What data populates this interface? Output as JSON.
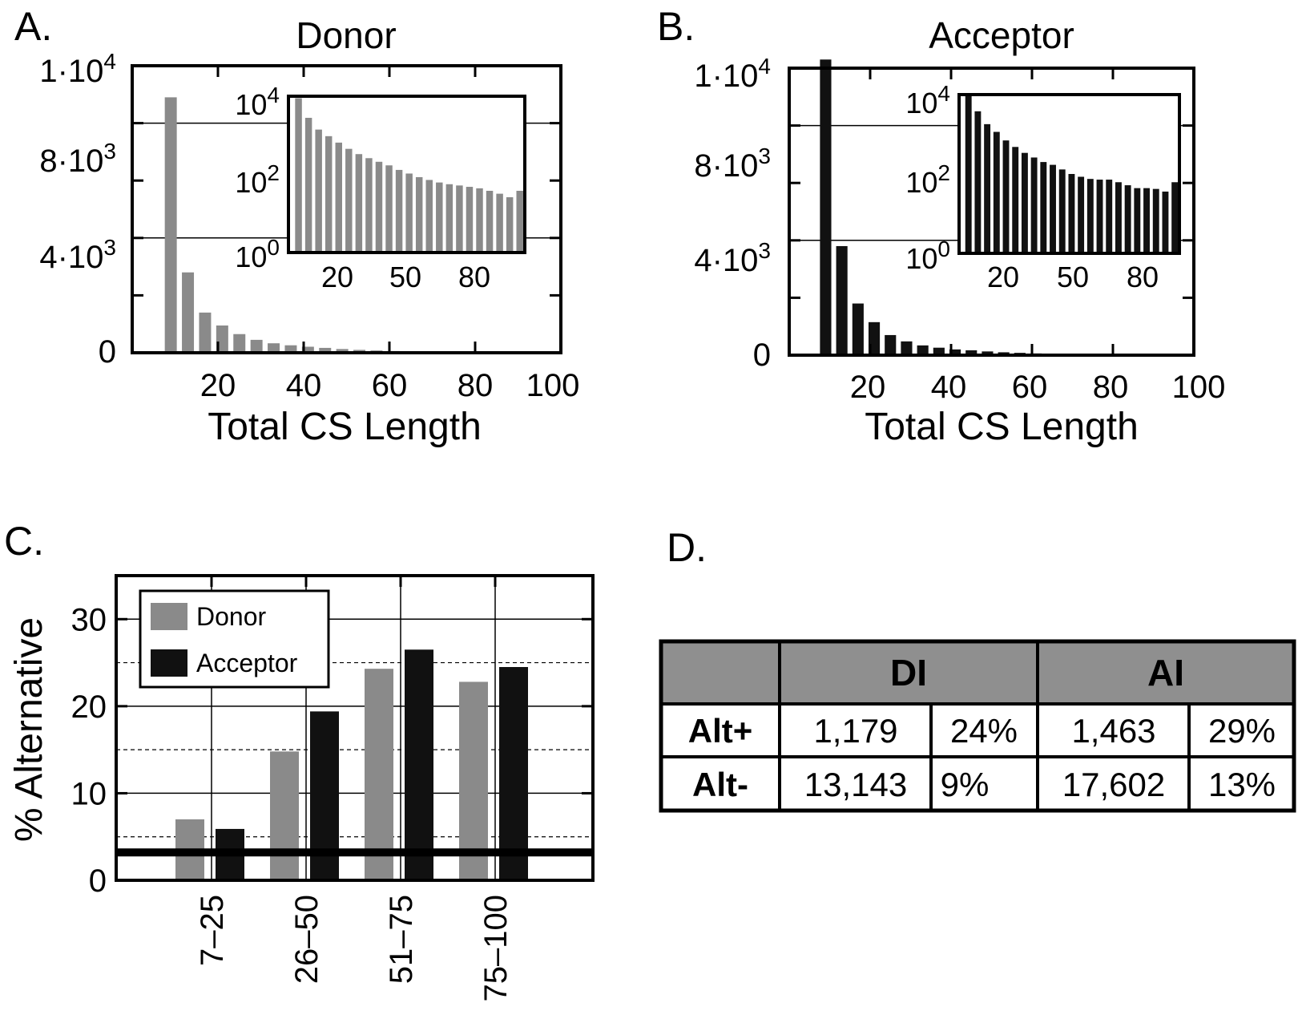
{
  "chart_data": [
    {
      "panel": "A.",
      "type": "bar",
      "title": "Donor",
      "xlabel": "Total CS Length",
      "ylabel": "",
      "xlim": [
        0,
        100
      ],
      "ylim": [
        0,
        10000
      ],
      "xticks": [
        "20",
        "40",
        "60",
        "80",
        "100"
      ],
      "yticks": [
        {
          "value": 0,
          "base": "0",
          "exp": ""
        },
        {
          "value": 4000,
          "base": "4·10",
          "exp": "3"
        },
        {
          "value": 8000,
          "base": "8·10",
          "exp": "3"
        },
        {
          "value": 10000,
          "base": "1·10",
          "exp": "4"
        }
      ],
      "bar_color": "#8a8a8a",
      "x": [
        9,
        13,
        17,
        21,
        25,
        29,
        33,
        37,
        41,
        45,
        49,
        53,
        57,
        61,
        65,
        69,
        73,
        77,
        81,
        85,
        89,
        93,
        97
      ],
      "values": [
        8900,
        2800,
        1400,
        950,
        650,
        450,
        330,
        260,
        210,
        170,
        130,
        100,
        80,
        60,
        45,
        35,
        25,
        20,
        15,
        12,
        10,
        8,
        6
      ],
      "inset": {
        "type": "bar",
        "scale": "log",
        "ylim": [
          1,
          10000
        ],
        "xlim": [
          6,
          100
        ],
        "yticks": [
          {
            "value": 1,
            "base": "10",
            "exp": "0"
          },
          {
            "value": 100,
            "base": "10",
            "exp": "2"
          },
          {
            "value": 10000,
            "base": "10",
            "exp": "4"
          }
        ],
        "xticks": [
          "20",
          "50",
          "80"
        ],
        "x": [
          10,
          14,
          18,
          22,
          26,
          30,
          34,
          38,
          42,
          46,
          50,
          54,
          58,
          62,
          66,
          70,
          74,
          78,
          82,
          86,
          90,
          94,
          98
        ],
        "values": [
          8900,
          2800,
          1400,
          950,
          650,
          450,
          330,
          260,
          210,
          170,
          130,
          105,
          85,
          72,
          62,
          56,
          52,
          48,
          44,
          38,
          32,
          26,
          38
        ]
      }
    },
    {
      "panel": "B.",
      "type": "bar",
      "title": "Acceptor",
      "xlabel": "Total CS Length",
      "ylabel": "",
      "xlim": [
        0,
        100
      ],
      "ylim": [
        0,
        10000
      ],
      "xticks": [
        "20",
        "40",
        "60",
        "80",
        "100"
      ],
      "yticks": [
        {
          "value": 0,
          "base": "0",
          "exp": ""
        },
        {
          "value": 4000,
          "base": "4·10",
          "exp": "3"
        },
        {
          "value": 8000,
          "base": "8·10",
          "exp": "3"
        },
        {
          "value": 10000,
          "base": "1·10",
          "exp": "4"
        }
      ],
      "bar_color": "#111111",
      "x": [
        9,
        13,
        17,
        21,
        25,
        29,
        33,
        37,
        41,
        45,
        49,
        53,
        57,
        61,
        65,
        69,
        73,
        77,
        81,
        85,
        89,
        93,
        97
      ],
      "values": [
        10300,
        3800,
        1800,
        1150,
        700,
        480,
        340,
        260,
        200,
        170,
        130,
        100,
        80,
        60,
        50,
        40,
        30,
        25,
        20,
        15,
        12,
        10,
        8
      ],
      "inset": {
        "type": "bar",
        "scale": "log",
        "ylim": [
          1,
          10000
        ],
        "xlim": [
          6,
          100
        ],
        "yticks": [
          {
            "value": 1,
            "base": "10",
            "exp": "0"
          },
          {
            "value": 100,
            "base": "10",
            "exp": "2"
          },
          {
            "value": 10000,
            "base": "10",
            "exp": "4"
          }
        ],
        "xticks": [
          "20",
          "50",
          "80"
        ],
        "x": [
          10,
          14,
          18,
          22,
          26,
          30,
          34,
          38,
          42,
          46,
          50,
          54,
          58,
          62,
          66,
          70,
          74,
          78,
          82,
          86,
          90,
          94,
          98
        ],
        "values": [
          10300,
          3800,
          1800,
          1150,
          700,
          480,
          340,
          260,
          200,
          170,
          130,
          100,
          85,
          75,
          72,
          72,
          62,
          52,
          44,
          44,
          42,
          36,
          62
        ]
      }
    },
    {
      "panel": "C.",
      "type": "bar",
      "title": "",
      "xlabel": "",
      "ylabel": "% Alternative",
      "ylim": [
        0,
        35
      ],
      "yticks": [
        0,
        10,
        20,
        30
      ],
      "dashed_gridlines": [
        5,
        15,
        25
      ],
      "reference_line": 3.2,
      "categories": [
        "7–25",
        "26–50",
        "51–75",
        "75–100"
      ],
      "series": [
        {
          "name": "Donor",
          "color": "#8a8a8a",
          "values": [
            7,
            14.8,
            24.3,
            22.8
          ]
        },
        {
          "name": "Acceptor",
          "color": "#111111",
          "values": [
            5.9,
            19.4,
            26.5,
            24.5
          ]
        }
      ],
      "legend": "top-left"
    }
  ],
  "panel_d": {
    "label": "D.",
    "col_headers": [
      "DI",
      "AI"
    ],
    "rows": [
      {
        "label": "Alt+",
        "di_count": "1,179",
        "di_pct": "24%",
        "ai_count": "1,463",
        "ai_pct": "29%"
      },
      {
        "label": "Alt-",
        "di_count": "13,143",
        "di_pct": "9%",
        "ai_count": "17,602",
        "ai_pct": "13%"
      }
    ]
  }
}
